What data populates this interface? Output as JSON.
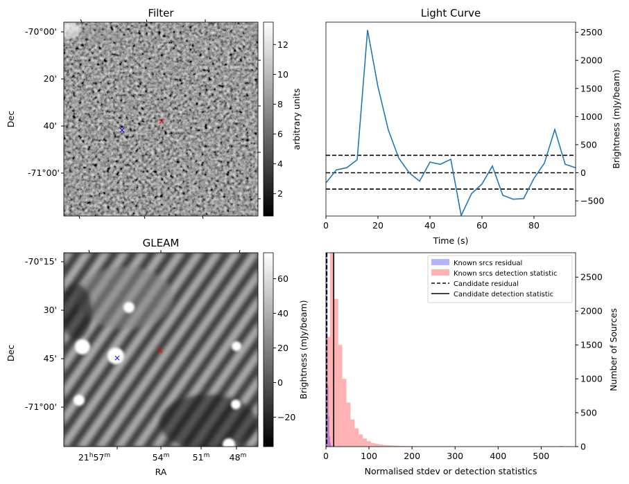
{
  "filter_panel": {
    "title": "Filter",
    "ylabel": "Dec",
    "dec_ticks": [
      "-70°00'",
      "20'",
      "40'",
      "-71°00'"
    ],
    "colorbar": {
      "label": "arbitrary units",
      "min": 0.5,
      "max": 13.5,
      "ticks": [
        "2",
        "4",
        "6",
        "8",
        "10",
        "12"
      ],
      "tick_values": [
        2,
        4,
        6,
        8,
        10,
        12
      ]
    },
    "markers": [
      {
        "name": "candidate",
        "color": "#ff0000",
        "symbol": "×"
      },
      {
        "name": "known-source",
        "color": "#0000ff",
        "symbol": "×"
      }
    ]
  },
  "gleam_panel": {
    "title": "GLEAM",
    "xlabel": "RA",
    "ylabel": "Dec",
    "dec_ticks": [
      "-70°15'",
      "30'",
      "45'",
      "-71°00'"
    ],
    "ra_ticks": [
      {
        "main": "21",
        "sup1": "h",
        "mid": "57",
        "sup2": "m"
      },
      {
        "main": "54",
        "sup1": "",
        "mid": "",
        "sup2": "m"
      },
      {
        "main": "51",
        "sup1": "",
        "mid": "",
        "sup2": "m"
      },
      {
        "main": "48",
        "sup1": "",
        "mid": "",
        "sup2": "m"
      }
    ],
    "colorbar": {
      "label": "Brightness (mJy/beam)",
      "min": -37,
      "max": 75,
      "ticks": [
        "−20",
        "0",
        "20",
        "40",
        "60"
      ],
      "tick_values": [
        -20,
        0,
        20,
        40,
        60
      ]
    },
    "markers": [
      {
        "name": "candidate",
        "color": "#ff0000",
        "symbol": "×"
      },
      {
        "name": "known-source",
        "color": "#0000ff",
        "symbol": "×"
      }
    ]
  },
  "chart_data": [
    {
      "type": "line",
      "title": "Light Curve",
      "xlabel": "Time (s)",
      "ylabel": "Brightness (mJy/beam)",
      "xlim": [
        0,
        96
      ],
      "ylim": [
        -770,
        2680
      ],
      "x_ticks": [
        0,
        20,
        40,
        60,
        80
      ],
      "y_ticks": [
        -500,
        0,
        500,
        1000,
        1500,
        2000,
        2500
      ],
      "x_tick_labels": [
        "0",
        "20",
        "40",
        "60",
        "80"
      ],
      "y_tick_labels": [
        "−500",
        "0",
        "500",
        "1000",
        "1500",
        "2000",
        "2500"
      ],
      "color": "#1f77b4",
      "x": [
        0,
        4,
        8,
        12,
        16,
        20,
        24,
        28,
        32,
        36,
        40,
        44,
        48,
        52,
        56,
        60,
        64,
        68,
        72,
        76,
        80,
        84,
        88,
        92,
        96
      ],
      "y": [
        -180,
        50,
        90,
        230,
        2540,
        1530,
        760,
        260,
        0,
        -150,
        190,
        150,
        240,
        -760,
        -370,
        -200,
        120,
        -400,
        -470,
        -460,
        -100,
        170,
        770,
        150,
        90
      ],
      "hlines": [
        {
          "name": "mean-line",
          "y": 0,
          "style": "dashed"
        },
        {
          "name": "upper-threshold-line",
          "y": 310,
          "style": "dashed"
        },
        {
          "name": "lower-threshold-line",
          "y": -290,
          "style": "dashed"
        }
      ]
    },
    {
      "type": "bar",
      "xlabel": "Normalised stdev or detection statistics",
      "ylabel": "Number of Sources",
      "left_ylabel": "Brightness (mJy/beam)",
      "xlim": [
        0,
        580
      ],
      "ylim": [
        0,
        2860
      ],
      "x_ticks": [
        0,
        100,
        200,
        300,
        400,
        500
      ],
      "y_ticks": [
        0,
        500,
        1000,
        1500,
        2000,
        2500
      ],
      "x_tick_labels": [
        "0",
        "100",
        "200",
        "300",
        "400",
        "500"
      ],
      "y_tick_labels": [
        "0",
        "500",
        "1000",
        "1500",
        "2000",
        "2500"
      ],
      "bin_width": 9.5,
      "series": [
        {
          "name": "Known srcs residual",
          "color": "#0000ff",
          "opacity": 0.3,
          "bin_start": 0,
          "bin_width": 1.9,
          "values": [
            2860,
            2860,
            900,
            450,
            150,
            60,
            20
          ]
        },
        {
          "name": "Known srcs detection statistic",
          "color": "#ff0000",
          "opacity": 0.3,
          "bin_start": 0,
          "bin_width": 9.5,
          "values": [
            1620,
            2860,
            2180,
            1500,
            1000,
            650,
            400,
            270,
            180,
            120,
            80,
            55,
            40,
            30,
            24,
            20,
            16,
            13,
            10,
            8,
            7,
            6,
            5,
            4,
            4,
            3,
            3,
            2,
            2,
            2,
            2,
            2,
            1,
            1,
            1,
            1,
            1,
            1,
            1,
            1,
            1,
            1,
            1,
            1,
            1,
            1,
            1,
            1,
            1,
            1,
            1,
            1,
            1,
            1,
            1,
            1,
            1,
            10,
            1,
            1
          ]
        }
      ],
      "vlines": [
        {
          "name": "Candidate residual",
          "x": 2,
          "style": "dashed"
        },
        {
          "name": "Candidate detection statistic",
          "x": 18,
          "style": "solid"
        }
      ],
      "legend": [
        {
          "label": "Known srcs residual",
          "kind": "patch",
          "color": "#0000ff"
        },
        {
          "label": "Known srcs detection statistic",
          "kind": "patch",
          "color": "#ff0000"
        },
        {
          "label": "Candidate residual",
          "kind": "dashed"
        },
        {
          "label": "Candidate detection statistic",
          "kind": "solid"
        }
      ]
    }
  ]
}
